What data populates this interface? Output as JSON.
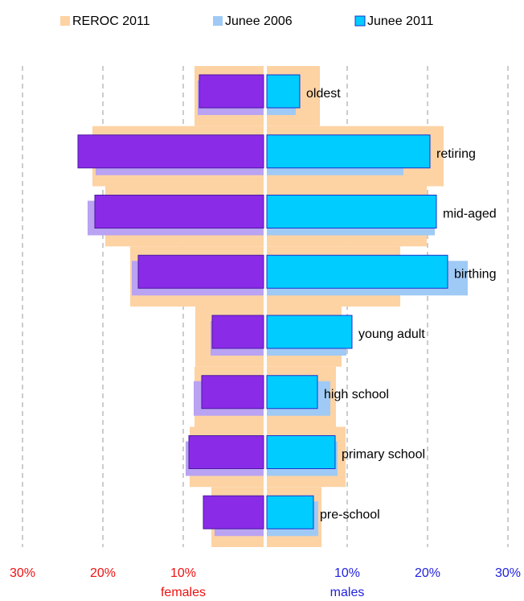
{
  "chart_data": {
    "type": "pyramid",
    "categories": [
      "oldest",
      "retiring",
      "mid-aged",
      "birthing",
      "young adult",
      "high school",
      "primary school",
      "pre-school"
    ],
    "series": [
      {
        "name": "REROC 2011",
        "colors": {
          "females": "#fdd3a4",
          "males": "#fdd3a4"
        },
        "females": [
          8.6,
          21.3,
          19.7,
          16.6,
          8.5,
          8.6,
          9.2,
          6.5
        ],
        "males": [
          6.6,
          22,
          19.9,
          16.6,
          9.3,
          8.6,
          9.8,
          6.8
        ]
      },
      {
        "name": "Junee 2006",
        "colors": {
          "females": "#b9a3f2",
          "males": "#9fcaf5"
        },
        "females": [
          8.2,
          20.9,
          21.9,
          16.4,
          6.6,
          8.7,
          9.7,
          6.1
        ],
        "males": [
          3.6,
          17,
          20.9,
          25,
          9.9,
          7.9,
          8.8,
          6.4
        ]
      },
      {
        "name": "Junee 2011",
        "colors": {
          "females": "#8a2be8",
          "males": "#00ccff"
        },
        "females": [
          8,
          23.1,
          21,
          15.6,
          6.4,
          7.7,
          9.3,
          7.5
        ],
        "males": [
          4.1,
          20.3,
          21.1,
          22.5,
          10.6,
          6.3,
          8.5,
          5.8
        ]
      }
    ],
    "xlim": [
      0,
      30
    ],
    "left_ticks": [
      {
        "value": 30,
        "label": "30%"
      },
      {
        "value": 20,
        "label": "20%"
      },
      {
        "value": 10,
        "label": "10%"
      }
    ],
    "right_ticks": [
      {
        "value": 10,
        "label": "10%"
      },
      {
        "value": 20,
        "label": "20%"
      },
      {
        "value": 30,
        "label": "30%"
      }
    ],
    "left_label": "females",
    "right_label": "males",
    "left_color": "#ee1111",
    "right_color": "#2222dd",
    "grid": true
  }
}
